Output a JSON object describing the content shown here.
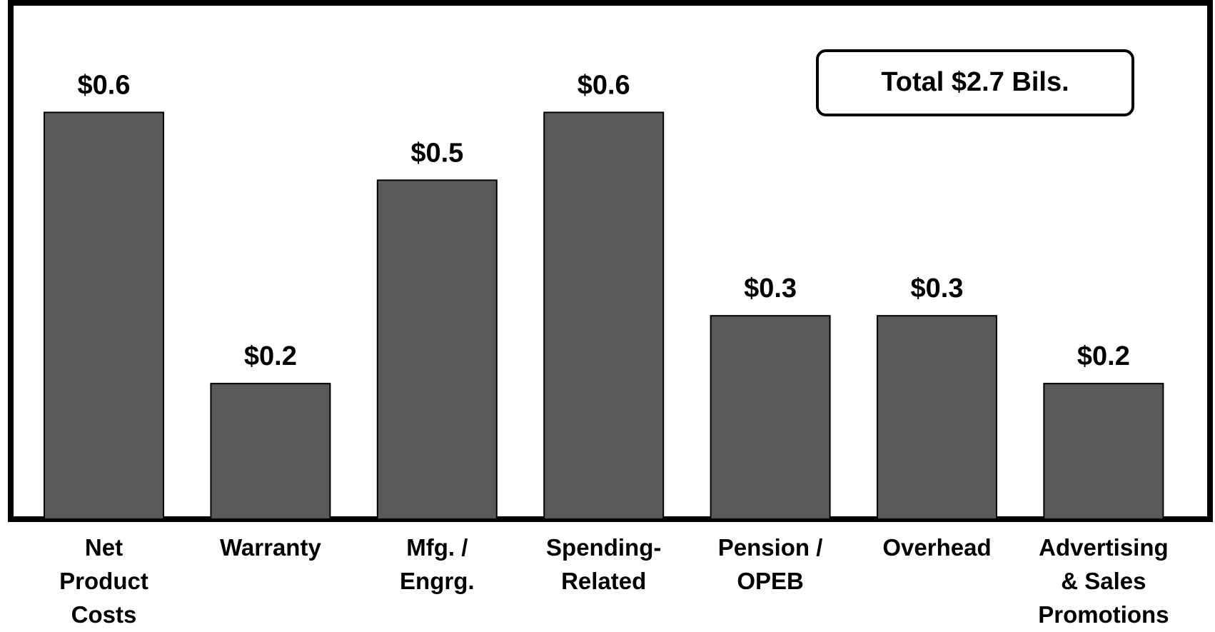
{
  "chart_data": {
    "type": "bar",
    "annotation": "Total $2.7 Bils.",
    "categories": [
      "Net\nProduct\nCosts",
      "Warranty",
      "Mfg. /\nEngrg.",
      "Spending-\nRelated",
      "Pension /\nOPEB",
      "Overhead",
      "Advertising\n& Sales\nPromotions"
    ],
    "values": [
      0.6,
      0.2,
      0.5,
      0.6,
      0.3,
      0.3,
      0.2
    ],
    "value_labels": [
      "$0.6",
      "$0.2",
      "$0.5",
      "$0.6",
      "$0.3",
      "$0.3",
      "$0.2"
    ],
    "color": "#595959",
    "ylim": [
      0,
      0.75
    ]
  }
}
